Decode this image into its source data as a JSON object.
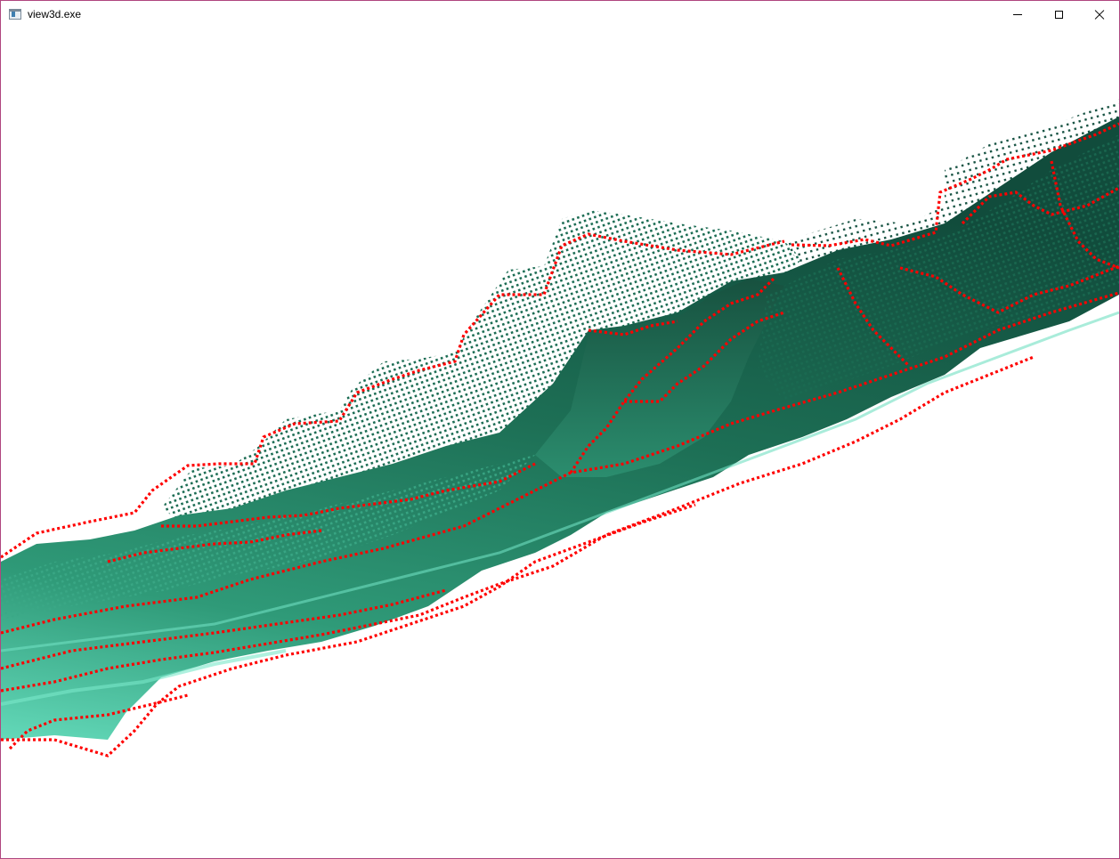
{
  "window": {
    "title": "view3d.exe",
    "icons": {
      "app": "application-icon",
      "minimize": "minimize-icon",
      "maximize": "maximize-icon",
      "close": "close-icon"
    },
    "border_color": "#b0467f"
  },
  "viewport": {
    "content": "3d-point-cloud-terrain",
    "colors": {
      "surface_dark": "#0e4a3a",
      "surface_mid": "#1f7a5e",
      "surface_light": "#5fd6b6",
      "contour_points": "#ff0000",
      "background": "#ffffff"
    }
  }
}
